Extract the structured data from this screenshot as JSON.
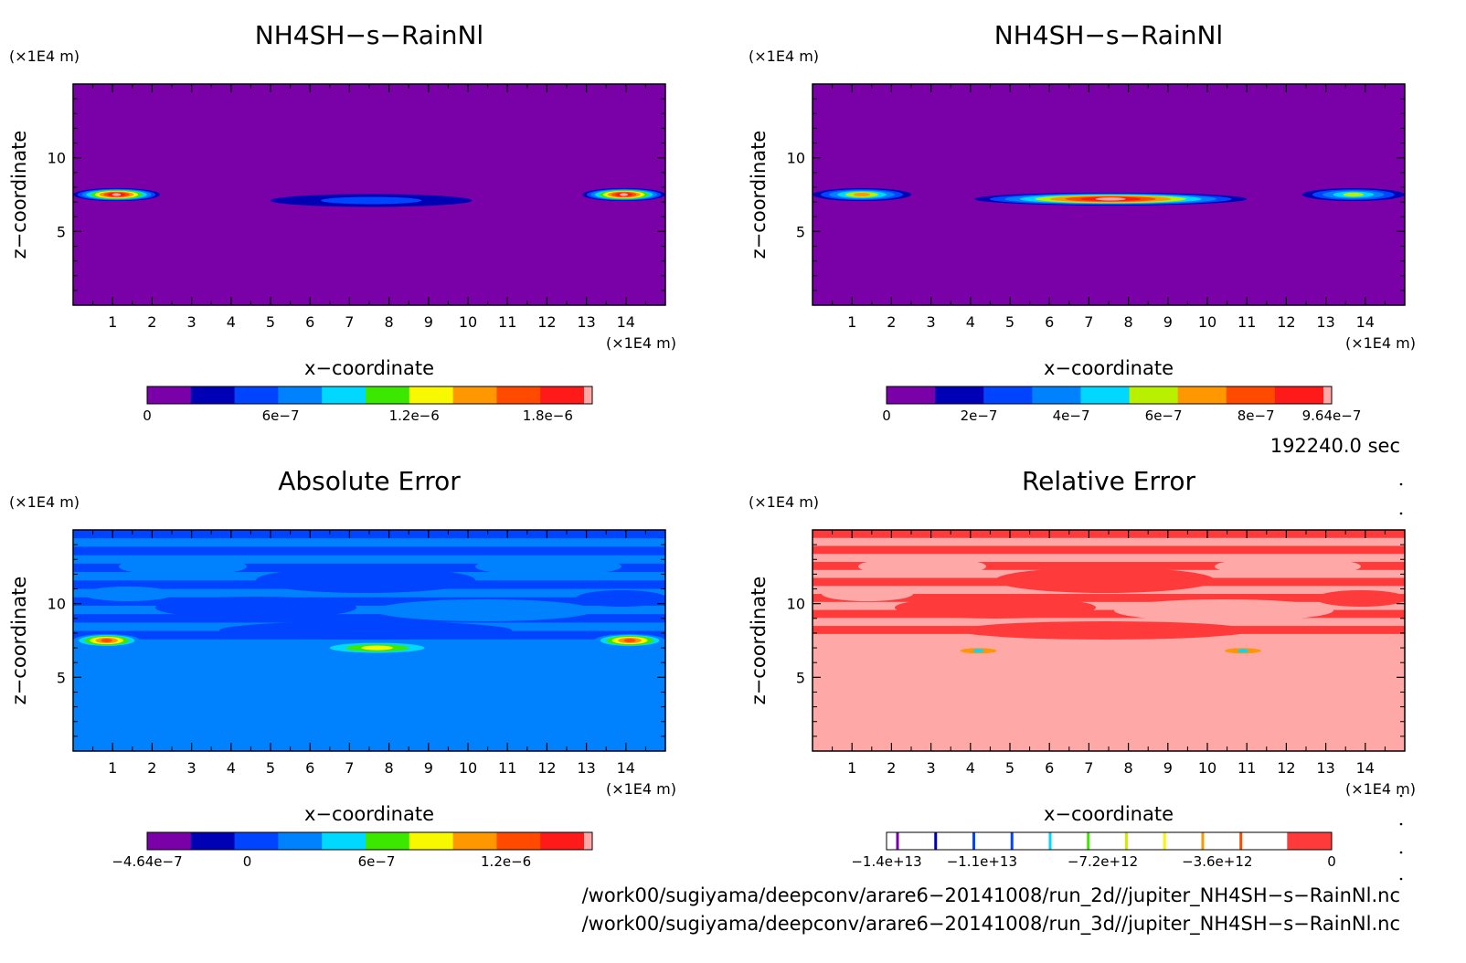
{
  "chart_data": [
    {
      "type": "heatmap",
      "title": "NH4SH−s−RainNl",
      "xlabel": "x−coordinate",
      "ylabel": "z−coordinate",
      "x_unit": "(×1E4 m)",
      "y_unit": "(×1E4 m)",
      "xlim": [
        0,
        15
      ],
      "ylim": [
        0,
        15
      ],
      "x_ticks": [
        "1",
        "2",
        "3",
        "4",
        "5",
        "6",
        "7",
        "8",
        "9",
        "10",
        "11",
        "12",
        "13",
        "14"
      ],
      "y_ticks": [
        "5",
        "10"
      ],
      "background": "#7a00a8",
      "features": [
        {
          "kind": "layer",
          "x": [
            0,
            2.2
          ],
          "z": 7.5,
          "peak": 1.9e-06
        },
        {
          "kind": "layer",
          "x": [
            5.0,
            10.1
          ],
          "z": 7.1,
          "peak": 5e-07
        },
        {
          "kind": "layer",
          "x": [
            12.9,
            15
          ],
          "z": 7.5,
          "peak": 1.9e-06
        }
      ],
      "colorbar": {
        "min": 0,
        "max": 2e-06,
        "labels": [
          "0",
          "6e−7",
          "1.2e−6",
          "1.8e−6"
        ],
        "label_values": [
          0,
          6e-07,
          1.2e-06,
          1.8e-06
        ],
        "colors": [
          "#7a00a8",
          "#0000b4",
          "#0044ff",
          "#0082ff",
          "#00d8ff",
          "#3ce800",
          "#f8f800",
          "#ff9800",
          "#ff4a00",
          "#ff1a1a",
          "#ffa8a8"
        ]
      }
    },
    {
      "type": "heatmap",
      "title": "NH4SH−s−RainNl",
      "xlabel": "x−coordinate",
      "ylabel": "z−coordinate",
      "x_unit": "(×1E4 m)",
      "y_unit": "(×1E4 m)",
      "xlim": [
        0,
        15
      ],
      "ylim": [
        0,
        15
      ],
      "x_ticks": [
        "1",
        "2",
        "3",
        "4",
        "5",
        "6",
        "7",
        "8",
        "9",
        "10",
        "11",
        "12",
        "13",
        "14"
      ],
      "y_ticks": [
        "5",
        "10"
      ],
      "background": "#7a00a8",
      "features": [
        {
          "kind": "layer",
          "x": [
            0,
            2.5
          ],
          "z": 7.5,
          "peak": 6.5e-07
        },
        {
          "kind": "layer",
          "x": [
            4.1,
            11.0
          ],
          "z": 7.2,
          "peak": 9.6e-07
        },
        {
          "kind": "layer",
          "x": [
            12.4,
            15
          ],
          "z": 7.5,
          "peak": 5e-07
        }
      ],
      "colorbar": {
        "min": 0,
        "max": 9.64e-07,
        "labels": [
          "0",
          "2e−7",
          "4e−7",
          "6e−7",
          "8e−7",
          "9.64e−7"
        ],
        "label_values": [
          0,
          2e-07,
          4e-07,
          6e-07,
          8e-07,
          9.64e-07
        ],
        "colors": [
          "#7a00a8",
          "#0000b4",
          "#0044ff",
          "#0082ff",
          "#00d8ff",
          "#b8f000",
          "#ff9800",
          "#ff4a00",
          "#ff1a1a",
          "#ffa8a8"
        ]
      }
    },
    {
      "type": "heatmap",
      "title": "Absolute Error",
      "xlabel": "x−coordinate",
      "ylabel": "z−coordinate",
      "x_unit": "(×1E4 m)",
      "y_unit": "(×1E4 m)",
      "xlim": [
        0,
        15
      ],
      "ylim": [
        0,
        15
      ],
      "x_ticks": [
        "1",
        "2",
        "3",
        "4",
        "5",
        "6",
        "7",
        "8",
        "9",
        "10",
        "11",
        "12",
        "13",
        "14"
      ],
      "y_ticks": [
        "5",
        "10"
      ],
      "background": "#0082ff",
      "features": [
        {
          "kind": "banded",
          "z": [
            7,
            15
          ],
          "colors": [
            "#0044ff",
            "#0082ff"
          ]
        },
        {
          "kind": "layer",
          "x": [
            0,
            1.7
          ],
          "z": 7.5,
          "peak": 1.2e-06
        },
        {
          "kind": "layer",
          "x": [
            6.1,
            9.3
          ],
          "z": 7.0,
          "peak": 8e-07
        },
        {
          "kind": "layer",
          "x": [
            13.2,
            15
          ],
          "z": 7.5,
          "peak": 1.2e-06
        }
      ],
      "colorbar": {
        "min": -4.64e-07,
        "max": 1.6e-06,
        "labels": [
          "−4.64e−7",
          "0",
          "6e−7",
          "1.2e−6"
        ],
        "label_values": [
          -4.64e-07,
          0,
          6e-07,
          1.2e-06
        ],
        "colors": [
          "#7a00a8",
          "#0000b4",
          "#0044ff",
          "#0082ff",
          "#00d8ff",
          "#3ce800",
          "#f8f800",
          "#ff9800",
          "#ff4a00",
          "#ff1a1a",
          "#ffa8a8"
        ]
      }
    },
    {
      "type": "heatmap",
      "title": "Relative Error",
      "xlabel": "x−coordinate",
      "ylabel": "z−coordinate",
      "x_unit": "(×1E4 m)",
      "y_unit": "(×1E4 m)",
      "xlim": [
        0,
        15
      ],
      "ylim": [
        0,
        15
      ],
      "x_ticks": [
        "1",
        "2",
        "3",
        "4",
        "5",
        "6",
        "7",
        "8",
        "9",
        "10",
        "11",
        "12",
        "13",
        "14"
      ],
      "y_ticks": [
        "5",
        "10"
      ],
      "background": "#ffa8a8",
      "features": [
        {
          "kind": "banded",
          "z": [
            7.4,
            15
          ],
          "colors": [
            "#ff3a3a",
            "#ffa8a8"
          ]
        },
        {
          "kind": "spot",
          "x": 4.2,
          "z": 6.8
        },
        {
          "kind": "spot",
          "x": 10.9,
          "z": 6.8
        }
      ],
      "colorbar": {
        "min": -14000000000000.0,
        "max": 0,
        "labels": [
          "−1.4e+13",
          "−1.1e+13",
          "−7.2e+12",
          "−3.6e+12",
          "0"
        ],
        "label_values": [
          -14000000000000.0,
          -11000000000000.0,
          -7200000000000.0,
          -3600000000000.0,
          0
        ],
        "line_colors": [
          "#7a00a8",
          "#0000b4",
          "#0044ff",
          "#0044ff",
          "#00d8ff",
          "#3ce800",
          "#c8f000",
          "#f8f800",
          "#ff9800",
          "#ff4a00"
        ],
        "last_fill": "#ff3a3a"
      }
    }
  ],
  "time_label": "192240.0 sec",
  "file_paths": [
    "/work00/sugiyama/deepconv/arare6−20141008/run_2d//jupiter_NH4SH−s−RainNl.nc",
    "/work00/sugiyama/deepconv/arare6−20141008/run_3d//jupiter_NH4SH−s−RainNl.nc"
  ]
}
